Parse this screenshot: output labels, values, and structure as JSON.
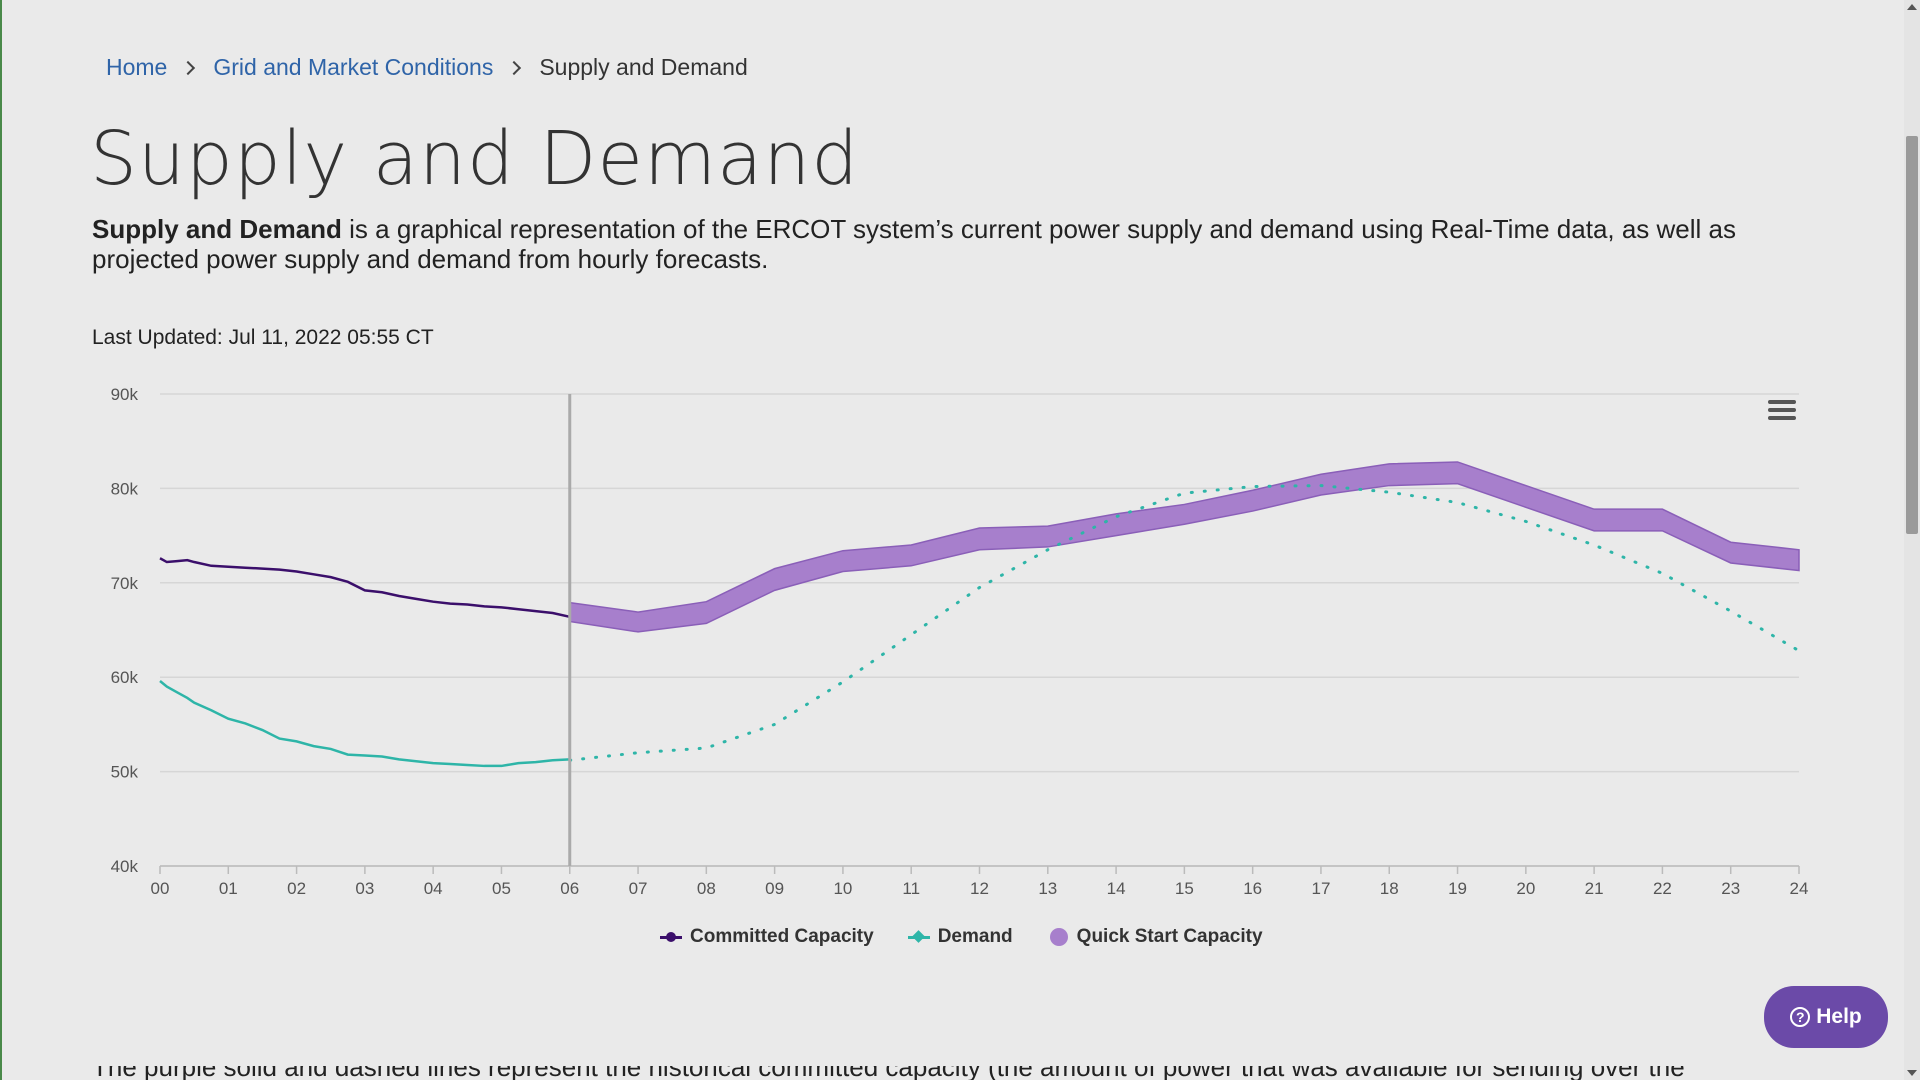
{
  "breadcrumb": {
    "home": "Home",
    "section": "Grid and Market Conditions",
    "current": "Supply and Demand"
  },
  "page": {
    "title": "Supply and Demand",
    "intro_bold": "Supply and Demand",
    "intro_rest": " is a graphical representation of the ERCOT system’s current power supply and demand using Real-Time data, as well as projected power supply and demand from hourly forecasts.",
    "last_updated": "Last Updated: Jul 11, 2022 05:55 CT",
    "footer_text": "The purple solid and dashed lines represent the historical committed capacity (the amount of power that was available for sending over the"
  },
  "chart_data": {
    "type": "line",
    "ylim": [
      40000,
      90000
    ],
    "y_ticks": [
      "90k",
      "80k",
      "70k",
      "60k",
      "50k",
      "40k"
    ],
    "y_tick_values": [
      90000,
      80000,
      70000,
      60000,
      50000,
      40000
    ],
    "x_ticks": [
      "00",
      "01",
      "02",
      "03",
      "04",
      "05",
      "06",
      "07",
      "08",
      "09",
      "10",
      "11",
      "12",
      "13",
      "14",
      "15",
      "16",
      "17",
      "18",
      "19",
      "20",
      "21",
      "22",
      "23",
      "24"
    ],
    "current_time_hour": 6,
    "colors": {
      "committed": "#3b0f6b",
      "demand": "#2eb5a8",
      "quick_start": "#a77fcc",
      "quick_start_edge": "#8a5fb8",
      "grid": "#d6d6d6",
      "now_line": "#aaaaaa"
    },
    "series": [
      {
        "name": "Committed Capacity",
        "x": [
          0,
          0.1,
          0.25,
          0.4,
          0.5,
          0.75,
          1,
          1.25,
          1.5,
          1.75,
          2,
          2.25,
          2.5,
          2.75,
          3,
          3.25,
          3.5,
          3.75,
          4,
          4.25,
          4.5,
          4.75,
          5,
          5.25,
          5.5,
          5.75,
          6
        ],
        "values": [
          72600,
          72200,
          72300,
          72400,
          72200,
          71800,
          71700,
          71600,
          71500,
          71400,
          71200,
          70900,
          70600,
          70100,
          69200,
          69000,
          68600,
          68300,
          68000,
          67800,
          67700,
          67500,
          67400,
          67200,
          67000,
          66800,
          66400
        ]
      },
      {
        "name": "Demand",
        "x": [
          0,
          0.1,
          0.25,
          0.4,
          0.5,
          0.75,
          1,
          1.25,
          1.5,
          1.75,
          2,
          2.25,
          2.5,
          2.75,
          3,
          3.25,
          3.5,
          3.75,
          4,
          4.25,
          4.5,
          4.75,
          5,
          5.25,
          5.5,
          5.75,
          6
        ],
        "values": [
          59600,
          59000,
          58400,
          57800,
          57300,
          56500,
          55600,
          55100,
          54400,
          53500,
          53200,
          52700,
          52400,
          51800,
          51700,
          51600,
          51300,
          51100,
          50900,
          50800,
          50700,
          50600,
          50600,
          50900,
          51000,
          51200,
          51300
        ]
      },
      {
        "name": "Demand Forecast",
        "x": [
          6,
          7,
          8,
          9,
          10,
          11,
          12,
          13,
          14,
          15,
          16,
          17,
          18,
          19,
          20,
          21,
          22,
          23,
          24
        ],
        "values": [
          51200,
          52000,
          52500,
          55000,
          59500,
          64500,
          69500,
          73500,
          77000,
          79500,
          80200,
          80300,
          79600,
          78500,
          76500,
          74000,
          71000,
          67000,
          62800
        ]
      },
      {
        "name": "Quick Start Capacity",
        "x": [
          6,
          7,
          8,
          9,
          10,
          11,
          12,
          13,
          14,
          15,
          16,
          17,
          18,
          19,
          20,
          21,
          22,
          23,
          24
        ],
        "low": [
          65900,
          64800,
          65700,
          69200,
          71200,
          71800,
          73500,
          73800,
          75000,
          76200,
          77600,
          79300,
          80300,
          80500,
          78000,
          75500,
          75500,
          72100,
          71300
        ],
        "high": [
          67900,
          66900,
          68000,
          71500,
          73400,
          74000,
          75800,
          76000,
          77300,
          78300,
          79800,
          81500,
          82600,
          82800,
          80300,
          77800,
          77800,
          74300,
          73500
        ]
      }
    ]
  },
  "legend": {
    "items": [
      "Committed Capacity",
      "Demand",
      "Quick Start Capacity"
    ]
  },
  "help": {
    "label": "Help",
    "icon": "?"
  }
}
